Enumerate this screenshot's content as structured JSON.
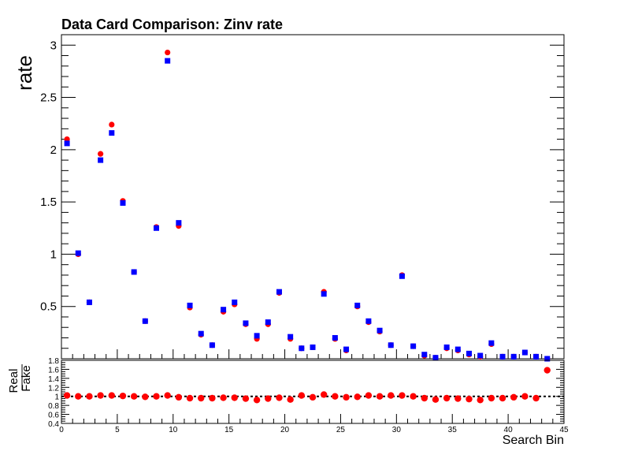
{
  "chart_data": [
    {
      "type": "scatter",
      "title": "Data Card Comparison: Zinv rate",
      "ylabel": "rate",
      "xlabel": "",
      "xlim": [
        0,
        45
      ],
      "ylim": [
        0,
        3.1
      ],
      "yticks": [
        "0.5",
        "1",
        "1.5",
        "2",
        "2.5",
        "3"
      ],
      "series": [
        {
          "marker": "circle",
          "color": "#ff0000",
          "x": [
            0.5,
            1.5,
            2.5,
            3.5,
            4.5,
            5.5,
            6.5,
            7.5,
            8.5,
            9.5,
            10.5,
            11.5,
            12.5,
            13.5,
            14.5,
            15.5,
            16.5,
            17.5,
            18.5,
            19.5,
            20.5,
            21.5,
            22.5,
            23.5,
            24.5,
            25.5,
            26.5,
            27.5,
            28.5,
            29.5,
            30.5,
            31.5,
            32.5,
            33.5,
            34.5,
            35.5,
            36.5,
            37.5,
            38.5,
            39.5,
            40.5,
            41.5,
            42.5,
            43.5
          ],
          "values": [
            2.1,
            1.0,
            0.54,
            1.96,
            2.24,
            1.51,
            0.83,
            0.36,
            1.26,
            2.93,
            1.27,
            0.49,
            0.23,
            0.13,
            0.45,
            0.52,
            0.33,
            0.19,
            0.33,
            0.63,
            0.19,
            0.1,
            0.11,
            0.64,
            0.19,
            0.08,
            0.5,
            0.35,
            0.26,
            0.13,
            0.8,
            0.12,
            0.03,
            0.01,
            0.1,
            0.08,
            0.04,
            0.02,
            0.14,
            0.02,
            0.02,
            0.06,
            0.02,
            0.0
          ]
        },
        {
          "marker": "square",
          "color": "#0000ff",
          "x": [
            0.5,
            1.5,
            2.5,
            3.5,
            4.5,
            5.5,
            6.5,
            7.5,
            8.5,
            9.5,
            10.5,
            11.5,
            12.5,
            13.5,
            14.5,
            15.5,
            16.5,
            17.5,
            18.5,
            19.5,
            20.5,
            21.5,
            22.5,
            23.5,
            24.5,
            25.5,
            26.5,
            27.5,
            28.5,
            29.5,
            30.5,
            31.5,
            32.5,
            33.5,
            34.5,
            35.5,
            36.5,
            37.5,
            38.5,
            39.5,
            40.5,
            41.5,
            42.5,
            43.5
          ],
          "values": [
            2.06,
            1.01,
            0.54,
            1.9,
            2.16,
            1.49,
            0.83,
            0.36,
            1.25,
            2.85,
            1.3,
            0.51,
            0.24,
            0.13,
            0.47,
            0.54,
            0.34,
            0.22,
            0.35,
            0.64,
            0.21,
            0.1,
            0.11,
            0.62,
            0.2,
            0.09,
            0.51,
            0.36,
            0.27,
            0.13,
            0.79,
            0.12,
            0.04,
            0.01,
            0.11,
            0.09,
            0.05,
            0.03,
            0.15,
            0.02,
            0.02,
            0.06,
            0.02,
            0.0
          ]
        }
      ]
    },
    {
      "type": "scatter",
      "title": "",
      "ylabel_num": "Real",
      "ylabel_den": "Fake",
      "xlabel": "Search Bin",
      "xlim": [
        0,
        45
      ],
      "ylim": [
        0.4,
        1.8
      ],
      "yticks": [
        "0.4",
        "0.6",
        "0.8",
        "1",
        "1.2",
        "1.4",
        "1.6",
        "1.8"
      ],
      "xticks": [
        "0",
        "5",
        "10",
        "15",
        "20",
        "25",
        "30",
        "35",
        "40",
        "45"
      ],
      "reference_line": 1,
      "series": [
        {
          "marker": "circle",
          "color": "#ff0000",
          "x": [
            0.5,
            1.5,
            2.5,
            3.5,
            4.5,
            5.5,
            6.5,
            7.5,
            8.5,
            9.5,
            10.5,
            11.5,
            12.5,
            13.5,
            14.5,
            15.5,
            16.5,
            17.5,
            18.5,
            19.5,
            20.5,
            21.5,
            22.5,
            23.5,
            24.5,
            25.5,
            26.5,
            27.5,
            28.5,
            29.5,
            30.5,
            31.5,
            32.5,
            33.5,
            34.5,
            35.5,
            36.5,
            37.5,
            38.5,
            39.5,
            40.5,
            41.5,
            42.5,
            43.5
          ],
          "values": [
            1.02,
            1.0,
            1.0,
            1.02,
            1.02,
            1.01,
            1.0,
            0.99,
            1.0,
            1.02,
            0.98,
            0.96,
            0.96,
            0.96,
            0.97,
            0.97,
            0.95,
            0.92,
            0.95,
            0.97,
            0.93,
            1.02,
            0.98,
            1.04,
            1.0,
            0.98,
            0.99,
            1.02,
            1.0,
            1.02,
            1.02,
            1.0,
            0.96,
            0.93,
            0.96,
            0.95,
            0.94,
            0.92,
            0.96,
            0.96,
            0.98,
            1.0,
            0.96,
            1.58
          ]
        }
      ]
    }
  ]
}
